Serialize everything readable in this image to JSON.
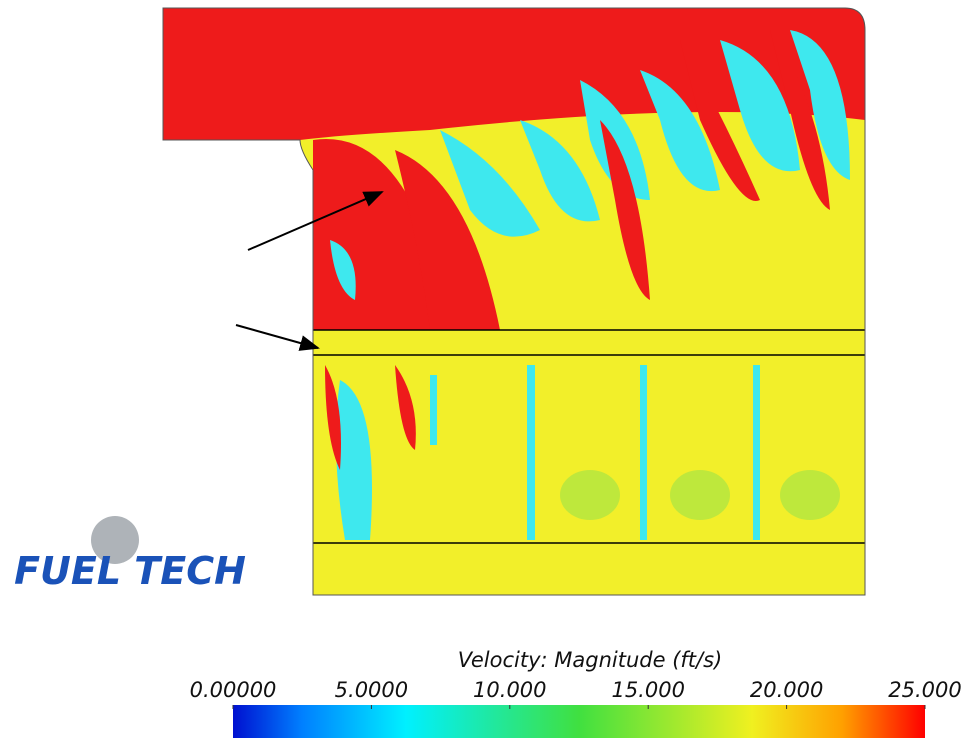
{
  "logo": {
    "name": "FUEL TECH"
  },
  "colorbar": {
    "title": "Velocity: Magnitude (ft/s)",
    "range": [
      0,
      25
    ],
    "ticks": [
      {
        "value": 0,
        "label": "0.00000"
      },
      {
        "value": 5,
        "label": "5.0000"
      },
      {
        "value": 10,
        "label": "10.000"
      },
      {
        "value": 15,
        "label": "15.000"
      },
      {
        "value": 20,
        "label": "20.000"
      },
      {
        "value": 25,
        "label": "25.000"
      }
    ]
  }
}
